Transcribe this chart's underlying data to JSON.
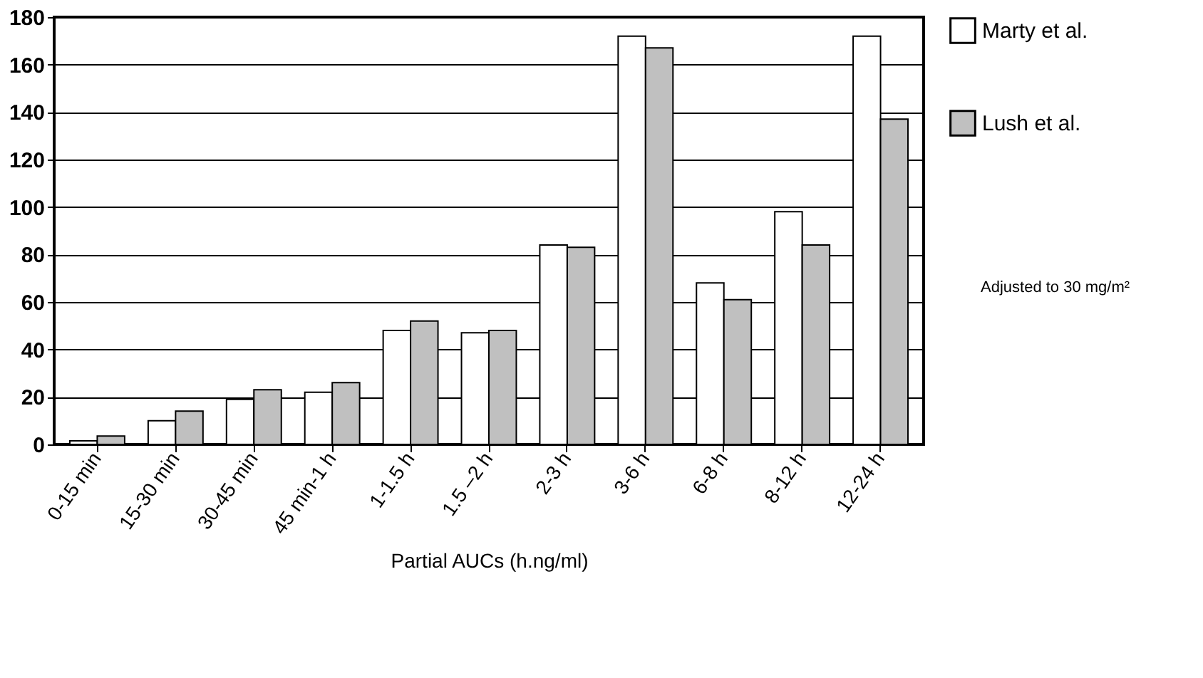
{
  "chart_data": {
    "type": "bar",
    "xlabel": "Partial AUCs (h.ng/ml)",
    "categories": [
      "0-15 min",
      "15-30 min",
      "30-45 min",
      "45 min-1 h",
      "1-1.5 h",
      "1.5 –2 h",
      "2-3 h",
      "3-6 h",
      "6-8 h",
      "8-12 h",
      "12-24 h"
    ],
    "series": [
      {
        "name": "Marty et al.",
        "color": "#ffffff",
        "values": [
          1.5,
          10,
          19,
          22,
          48,
          47,
          84,
          172,
          68,
          98,
          172
        ]
      },
      {
        "name": "Lush et al.",
        "color": "#c0c0c0",
        "values": [
          3.5,
          14,
          23,
          26,
          52,
          48,
          83,
          167,
          61,
          84,
          137
        ]
      }
    ],
    "annotations": [
      "Adjusted to 30 mg/m²"
    ],
    "ylim": [
      0,
      180
    ],
    "yticks": [
      0,
      20,
      40,
      60,
      80,
      100,
      120,
      140,
      160,
      180
    ],
    "grid": "y",
    "legend": "right"
  }
}
